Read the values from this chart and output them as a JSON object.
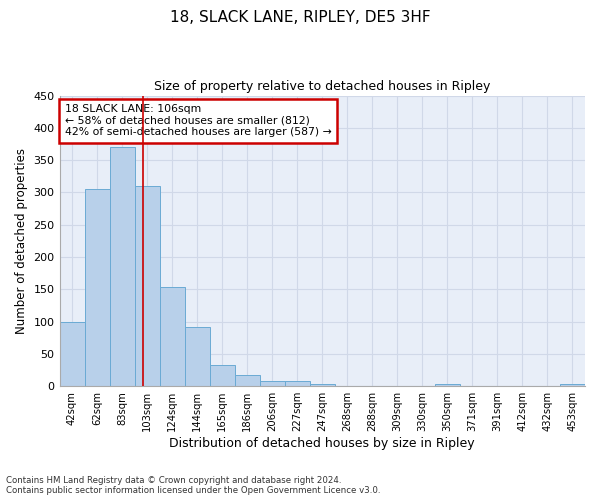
{
  "title1": "18, SLACK LANE, RIPLEY, DE5 3HF",
  "title2": "Size of property relative to detached houses in Ripley",
  "xlabel": "Distribution of detached houses by size in Ripley",
  "ylabel": "Number of detached properties",
  "categories": [
    "42sqm",
    "62sqm",
    "83sqm",
    "103sqm",
    "124sqm",
    "144sqm",
    "165sqm",
    "186sqm",
    "206sqm",
    "227sqm",
    "247sqm",
    "268sqm",
    "288sqm",
    "309sqm",
    "330sqm",
    "350sqm",
    "371sqm",
    "391sqm",
    "412sqm",
    "432sqm",
    "453sqm"
  ],
  "values": [
    100,
    305,
    370,
    310,
    153,
    92,
    33,
    18,
    8,
    8,
    4,
    0,
    0,
    0,
    0,
    4,
    0,
    0,
    0,
    0,
    3
  ],
  "bar_color": "#b8d0ea",
  "bar_edge_color": "#6aaad4",
  "annotation_text_line1": "18 SLACK LANE: 106sqm",
  "annotation_text_line2": "← 58% of detached houses are smaller (812)",
  "annotation_text_line3": "42% of semi-detached houses are larger (587) →",
  "annotation_box_color": "#ffffff",
  "annotation_border_color": "#cc0000",
  "vertical_line_color": "#cc0000",
  "grid_color": "#d0d8e8",
  "background_color": "#e8eef8",
  "ylim": [
    0,
    450
  ],
  "yticks": [
    0,
    50,
    100,
    150,
    200,
    250,
    300,
    350,
    400,
    450
  ],
  "footer1": "Contains HM Land Registry data © Crown copyright and database right 2024.",
  "footer2": "Contains public sector information licensed under the Open Government Licence v3.0.",
  "vline_x": 2.85
}
